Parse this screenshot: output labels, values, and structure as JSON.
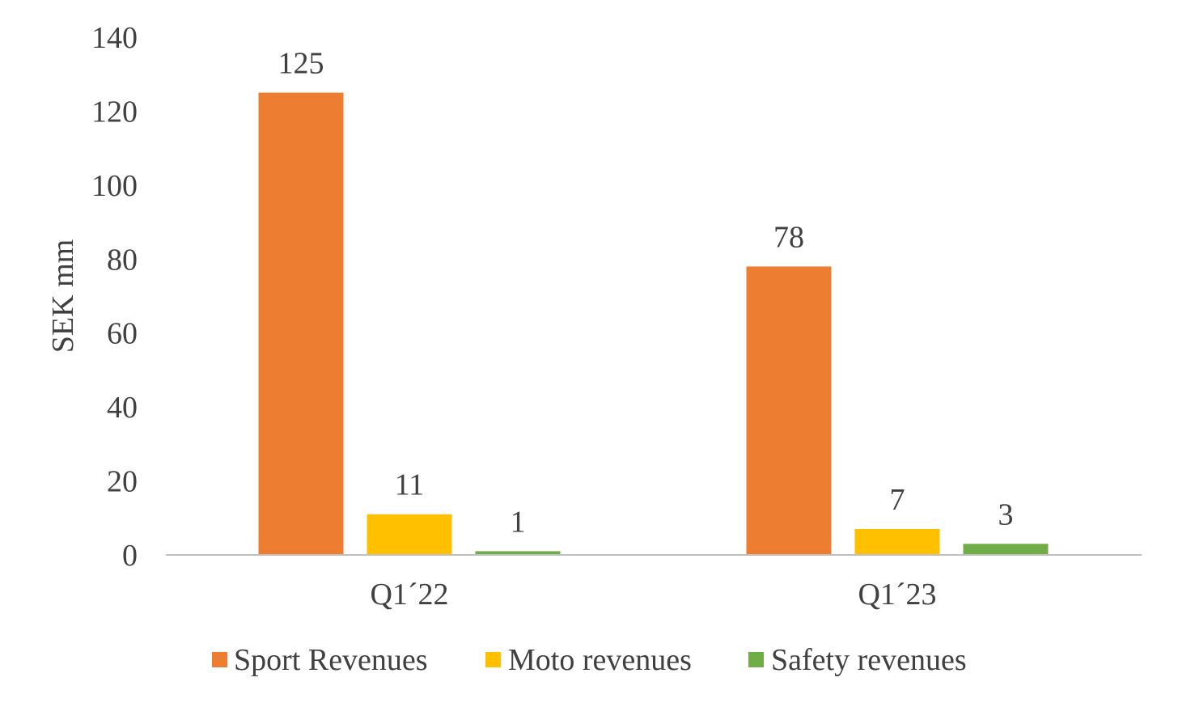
{
  "chart_data": {
    "type": "bar",
    "title": "",
    "xlabel": "",
    "ylabel": "SEK mm",
    "ylim": [
      0,
      140
    ],
    "yticks": [
      0,
      20,
      40,
      60,
      80,
      100,
      120,
      140
    ],
    "grid": false,
    "legend_position": "bottom",
    "categories": [
      "Q1´22",
      "Q1´23"
    ],
    "series": [
      {
        "name": "Sport Revenues",
        "color": "#ED7D31",
        "values": [
          125,
          78
        ]
      },
      {
        "name": "Moto revenues",
        "color": "#FFC000",
        "values": [
          11,
          7
        ]
      },
      {
        "name": "Safety revenues",
        "color": "#70AD47",
        "values": [
          1,
          3
        ]
      }
    ]
  }
}
